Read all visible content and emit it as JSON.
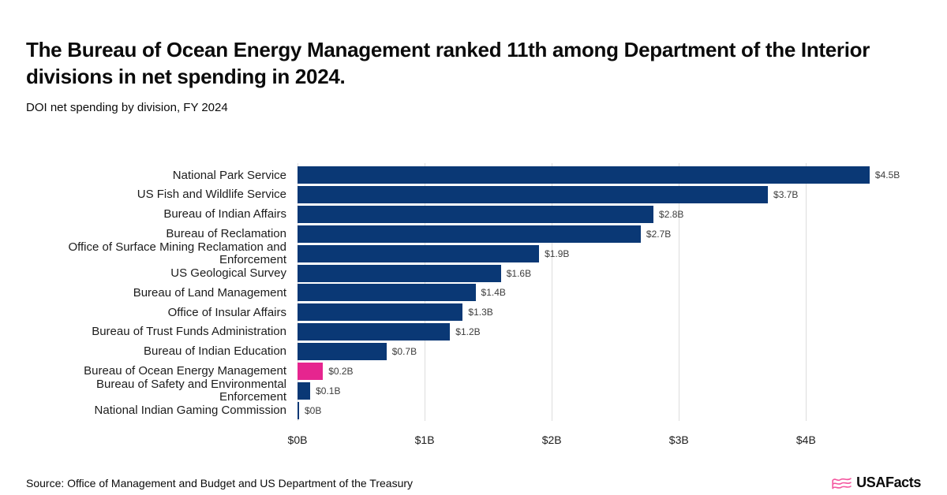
{
  "header": {
    "title": "The Bureau of Ocean Energy Management ranked 11th among Department of the Interior divisions in net spending in 2024.",
    "subtitle": "DOI net spending by division, FY 2024"
  },
  "chart_data": {
    "type": "bar",
    "orientation": "horizontal",
    "title": "The Bureau of Ocean Energy Management ranked 11th among Department of the Interior divisions in net spending in 2024.",
    "subtitle": "DOI net spending by division, FY 2024",
    "unit": "billions USD",
    "categories": [
      "National Park Service",
      "US Fish and Wildlife Service",
      "Bureau of Indian Affairs",
      "Bureau of Reclamation",
      "Office of Surface Mining Reclamation and Enforcement",
      "US Geological Survey",
      "Bureau of Land Management",
      "Office of Insular Affairs",
      "Bureau of Trust Funds Administration",
      "Bureau of Indian Education",
      "Bureau of Ocean Energy Management",
      "Bureau of Safety and Environmental Enforcement",
      "National Indian Gaming Commission"
    ],
    "values": [
      4.5,
      3.7,
      2.8,
      2.7,
      1.9,
      1.6,
      1.4,
      1.3,
      1.2,
      0.7,
      0.2,
      0.1,
      0.0
    ],
    "value_labels": [
      "$4.5B",
      "$3.7B",
      "$2.8B",
      "$2.7B",
      "$1.9B",
      "$1.6B",
      "$1.4B",
      "$1.3B",
      "$1.2B",
      "$0.7B",
      "$0.2B",
      "$0.1B",
      "$0B"
    ],
    "highlight_index": 10,
    "highlighted_category": "Bureau of Ocean Energy Management",
    "x_ticks": [
      {
        "value": 0,
        "label": "$0B"
      },
      {
        "value": 1,
        "label": "$1B"
      },
      {
        "value": 2,
        "label": "$2B"
      },
      {
        "value": 3,
        "label": "$3B"
      },
      {
        "value": 4,
        "label": "$4B"
      }
    ],
    "xlim": [
      0,
      4.6
    ],
    "grid": true,
    "legend": false,
    "colors": {
      "bar": "#0a3875",
      "highlight": "#e6258f",
      "gridline": "#dddddd",
      "value_label": "#3d3d3d",
      "category_label": "#1c1c1c"
    }
  },
  "footer": {
    "source": "Source: Office of Management and Budget and US Department of the Treasury",
    "logo_text": "USAFacts",
    "logo_color": "#f4569f"
  }
}
